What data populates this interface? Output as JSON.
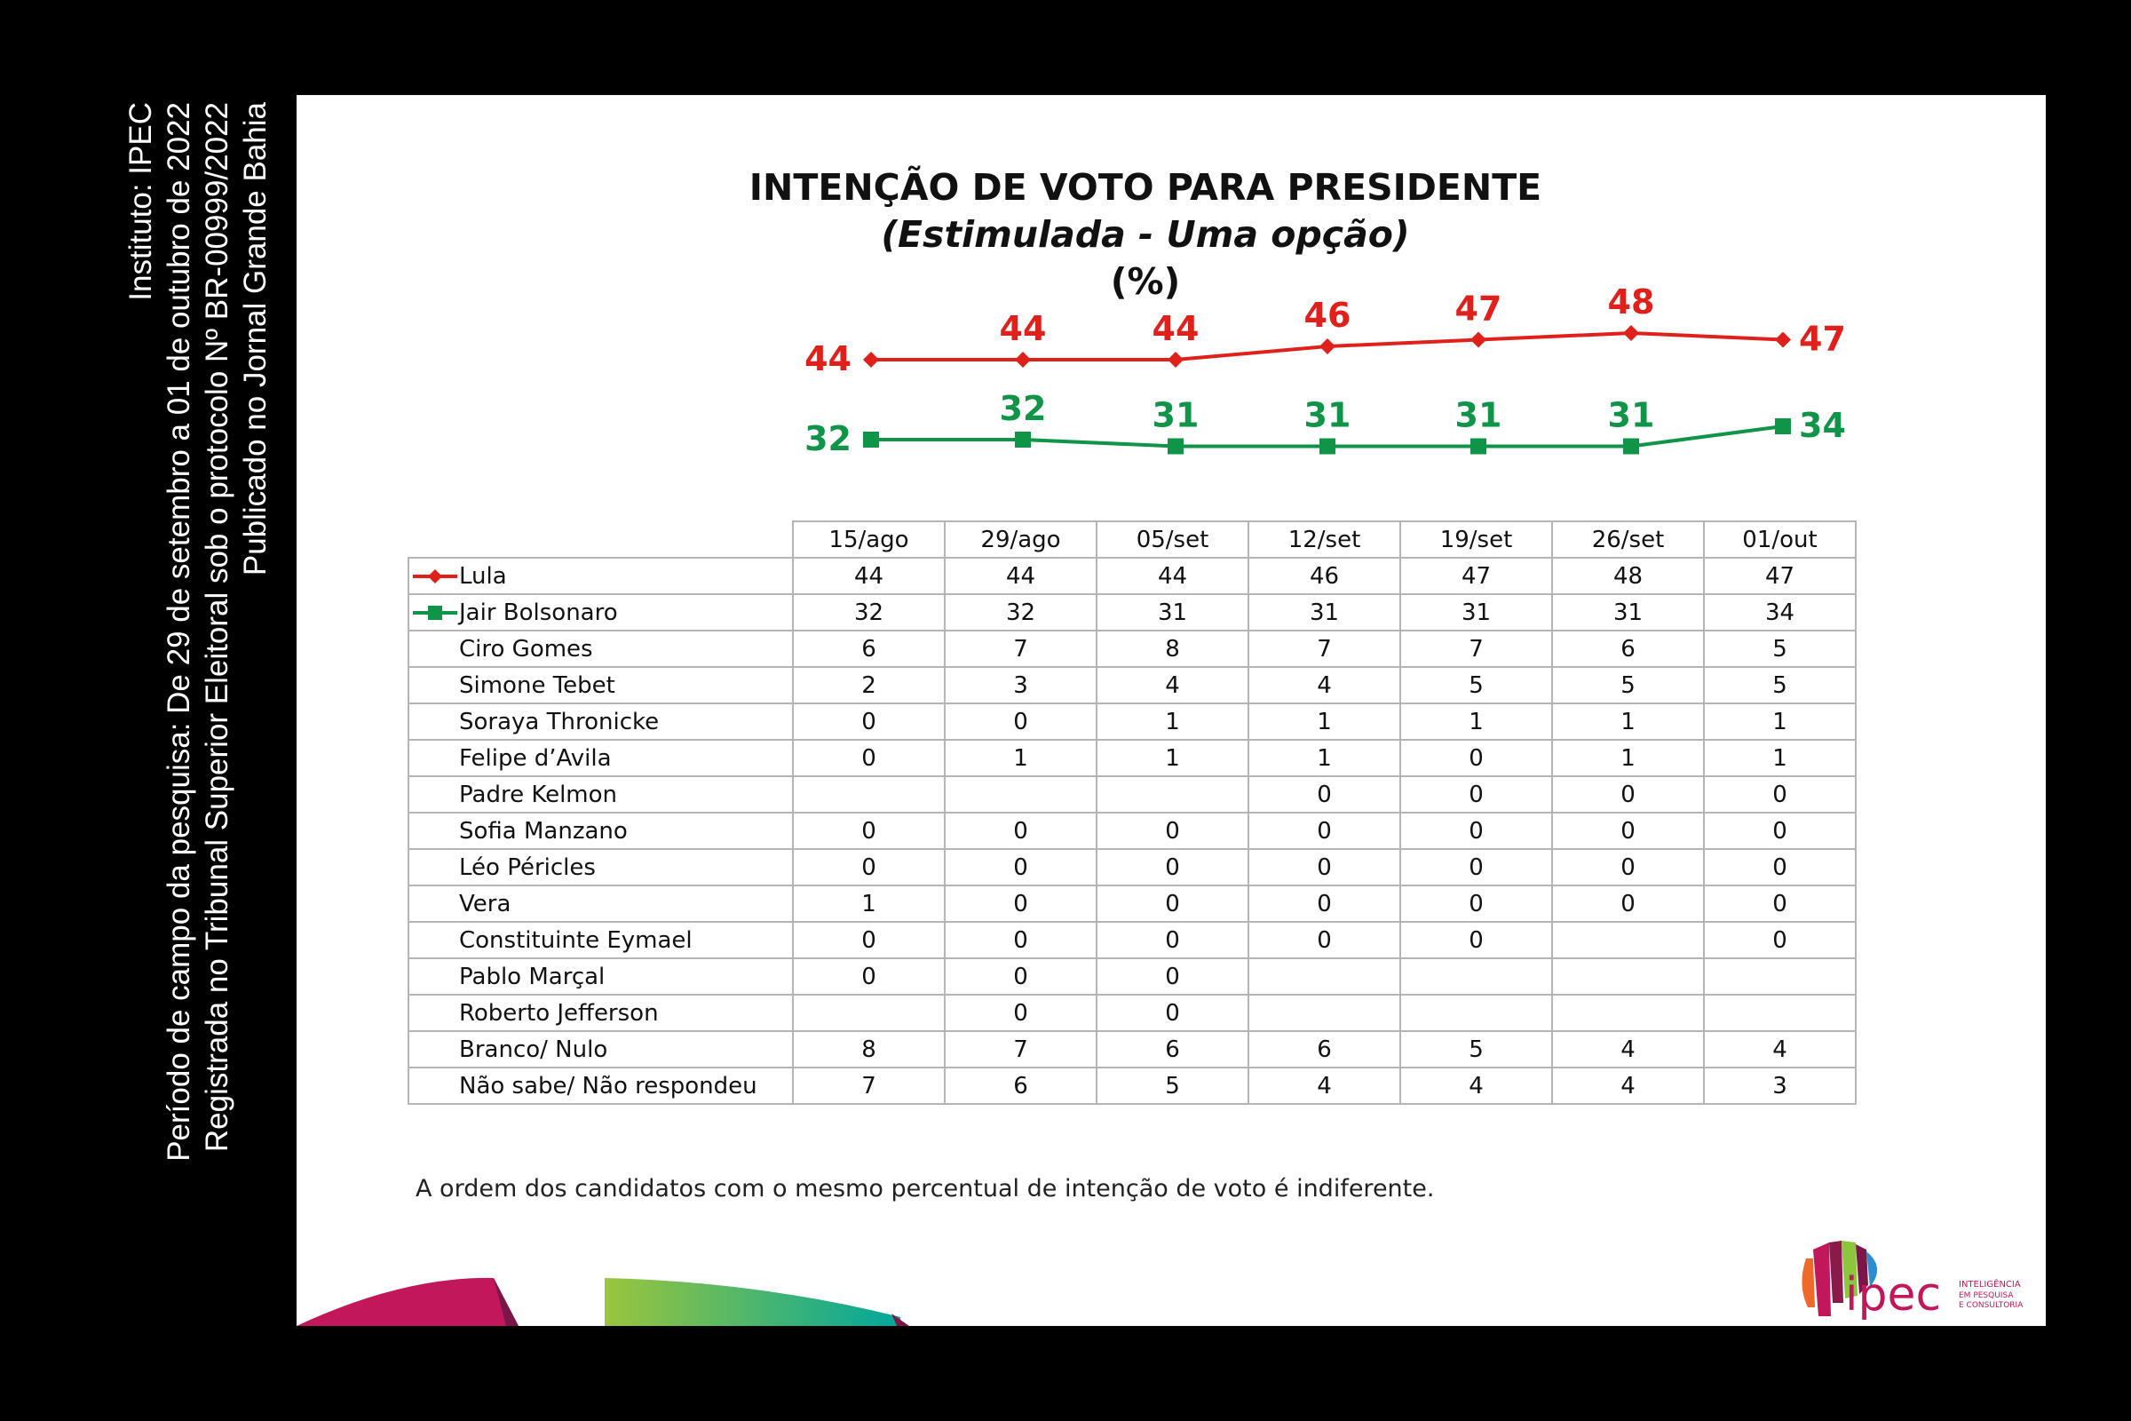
{
  "side_text": [
    "Instituto: IPEC",
    "Período de campo da pesquisa: De 29 de setembro a 01 de outubro de 2022",
    "Registrada no Tribunal Superior Eleitoral sob o protocolo Nº BR-00999/2022",
    "Publicado no Jornal Grande Bahia"
  ],
  "note": "A ordem dos candidatos com o mesmo percentual de intenção de voto é indiferente.",
  "logo": {
    "name": "ipec",
    "tagline": "INTELIGÊNCIA EM PESQUISA E CONSULTORIA"
  },
  "chart_data": {
    "type": "line",
    "title": "INTENÇÃO DE VOTO PARA PRESIDENTE",
    "subtitle": "(Estimulada - Uma opção)",
    "unit": "(%)",
    "categories": [
      "15/ago",
      "29/ago",
      "05/set",
      "12/set",
      "19/set",
      "26/set",
      "01/out"
    ],
    "series": [
      {
        "name": "Lula",
        "values": [
          44,
          44,
          44,
          46,
          47,
          48,
          47
        ],
        "color": "#e0201b",
        "marker": "diamond"
      },
      {
        "name": "Jair Bolsonaro",
        "values": [
          32,
          32,
          31,
          31,
          31,
          31,
          34
        ],
        "color": "#0f9448",
        "marker": "square"
      }
    ],
    "table": {
      "rows": [
        {
          "name": "Lula",
          "values": [
            "44",
            "44",
            "44",
            "46",
            "47",
            "48",
            "47"
          ]
        },
        {
          "name": "Jair Bolsonaro",
          "values": [
            "32",
            "32",
            "31",
            "31",
            "31",
            "31",
            "34"
          ]
        },
        {
          "name": "Ciro Gomes",
          "values": [
            "6",
            "7",
            "8",
            "7",
            "7",
            "6",
            "5"
          ]
        },
        {
          "name": "Simone Tebet",
          "values": [
            "2",
            "3",
            "4",
            "4",
            "5",
            "5",
            "5"
          ]
        },
        {
          "name": "Soraya Thronicke",
          "values": [
            "0",
            "0",
            "1",
            "1",
            "1",
            "1",
            "1"
          ]
        },
        {
          "name": "Felipe d’Avila",
          "values": [
            "0",
            "1",
            "1",
            "1",
            "0",
            "1",
            "1"
          ]
        },
        {
          "name": "Padre Kelmon",
          "values": [
            "",
            "",
            "",
            "0",
            "0",
            "0",
            "0"
          ]
        },
        {
          "name": "Sofia Manzano",
          "values": [
            "0",
            "0",
            "0",
            "0",
            "0",
            "0",
            "0"
          ]
        },
        {
          "name": "Léo Péricles",
          "values": [
            "0",
            "0",
            "0",
            "0",
            "0",
            "0",
            "0"
          ]
        },
        {
          "name": "Vera",
          "values": [
            "1",
            "0",
            "0",
            "0",
            "0",
            "0",
            "0"
          ]
        },
        {
          "name": "Constituinte Eymael",
          "values": [
            "0",
            "0",
            "0",
            "0",
            "0",
            "",
            "0"
          ]
        },
        {
          "name": "Pablo Marçal",
          "values": [
            "0",
            "0",
            "0",
            "",
            "",
            "",
            ""
          ]
        },
        {
          "name": "Roberto Jefferson",
          "values": [
            "",
            "0",
            "0",
            "",
            "",
            "",
            ""
          ]
        },
        {
          "name": "Branco/ Nulo",
          "values": [
            "8",
            "7",
            "6",
            "6",
            "5",
            "4",
            "4"
          ]
        },
        {
          "name": "Não sabe/ Não respondeu",
          "values": [
            "7",
            "6",
            "5",
            "4",
            "4",
            "4",
            "3"
          ]
        }
      ]
    }
  }
}
